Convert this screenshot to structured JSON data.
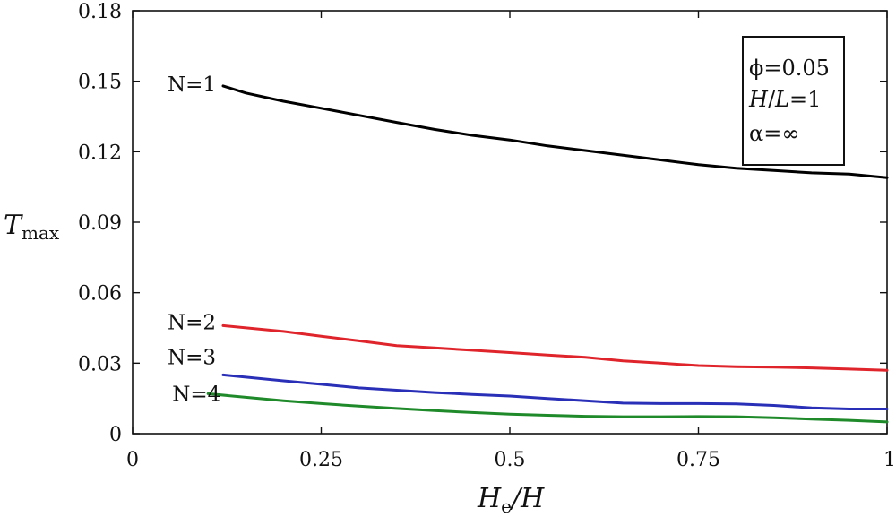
{
  "chart_data": {
    "type": "line",
    "title": "",
    "xlabel": "He/H",
    "xlabel_main": "H",
    "xlabel_sub": "e",
    "xlabel_rest": "/H",
    "ylabel": "Tmax",
    "ylabel_main": "T",
    "ylabel_sub": "max",
    "xlim": [
      0,
      1
    ],
    "ylim": [
      0,
      0.18
    ],
    "xticks": [
      0,
      0.25,
      0.5,
      0.75,
      1
    ],
    "xtick_labels": [
      "0",
      "0.25",
      "0.5",
      "0.75",
      "1"
    ],
    "yticks": [
      0,
      0.03,
      0.06,
      0.09,
      0.12,
      0.15,
      0.18
    ],
    "ytick_labels": [
      "0",
      "0.03",
      "0.06",
      "0.09",
      "0.12",
      "0.15",
      "0.18"
    ],
    "legend_box": {
      "position": "top-right",
      "line1": "ϕ=0.05",
      "line2": "H/L=1",
      "line2_italic": "H",
      "line2_mid": "/",
      "line2_italic2": "L",
      "line2_end": "=1",
      "line3": "α=∞"
    },
    "series": [
      {
        "name": "N=1",
        "color": "#000000",
        "x": [
          0.12,
          0.15,
          0.2,
          0.25,
          0.3,
          0.35,
          0.4,
          0.45,
          0.5,
          0.55,
          0.6,
          0.65,
          0.7,
          0.75,
          0.8,
          0.85,
          0.9,
          0.95,
          1.0
        ],
        "y": [
          0.148,
          0.145,
          0.1415,
          0.1385,
          0.1355,
          0.1325,
          0.1295,
          0.127,
          0.125,
          0.1225,
          0.1205,
          0.1185,
          0.1165,
          0.1145,
          0.113,
          0.112,
          0.111,
          0.1105,
          0.109
        ]
      },
      {
        "name": "N=2",
        "color": "#e0242b",
        "x": [
          0.12,
          0.2,
          0.25,
          0.3,
          0.35,
          0.4,
          0.45,
          0.5,
          0.55,
          0.6,
          0.65,
          0.7,
          0.75,
          0.8,
          0.85,
          0.9,
          0.95,
          1.0
        ],
        "y": [
          0.046,
          0.0435,
          0.0415,
          0.0395,
          0.0375,
          0.0365,
          0.0355,
          0.0345,
          0.0335,
          0.0325,
          0.031,
          0.03,
          0.029,
          0.0285,
          0.0283,
          0.028,
          0.0275,
          0.027
        ]
      },
      {
        "name": "N=3",
        "color": "#2a2fb8",
        "x": [
          0.12,
          0.2,
          0.25,
          0.3,
          0.35,
          0.4,
          0.45,
          0.5,
          0.55,
          0.6,
          0.65,
          0.7,
          0.75,
          0.8,
          0.85,
          0.9,
          0.95,
          1.0
        ],
        "y": [
          0.025,
          0.0225,
          0.021,
          0.0195,
          0.0185,
          0.0175,
          0.0167,
          0.016,
          0.015,
          0.014,
          0.013,
          0.0128,
          0.0128,
          0.0127,
          0.012,
          0.011,
          0.0105,
          0.0105
        ]
      },
      {
        "name": "N=4",
        "color": "#1f8a2a",
        "x": [
          0.1,
          0.15,
          0.2,
          0.25,
          0.3,
          0.35,
          0.4,
          0.45,
          0.5,
          0.55,
          0.6,
          0.65,
          0.7,
          0.75,
          0.8,
          0.85,
          0.9,
          0.95,
          1.0
        ],
        "y": [
          0.017,
          0.0155,
          0.014,
          0.0128,
          0.0117,
          0.0107,
          0.0098,
          0.009,
          0.0083,
          0.0078,
          0.0074,
          0.0072,
          0.0072,
          0.0073,
          0.0072,
          0.0068,
          0.0062,
          0.0057,
          0.005
        ]
      }
    ]
  }
}
